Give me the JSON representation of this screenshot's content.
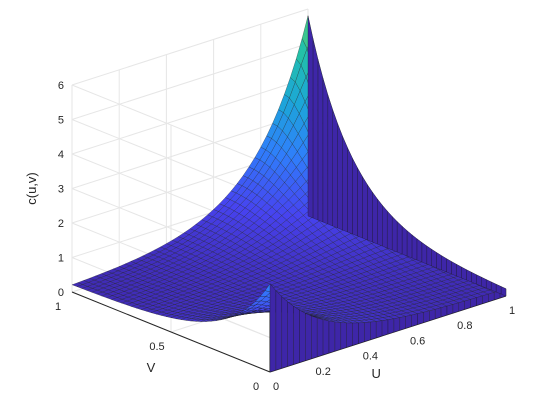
{
  "chart_data": {
    "type": "surface",
    "title": "",
    "xlabel": "U",
    "ylabel": "V",
    "zlabel": "c(u,v)",
    "xlim": [
      0,
      1
    ],
    "ylim": [
      0,
      1
    ],
    "zlim": [
      0,
      6
    ],
    "x_ticks": [
      "0",
      "0.2",
      "0.4",
      "0.6",
      "0.8",
      "1"
    ],
    "y_ticks": [
      "0",
      "0.5",
      "1"
    ],
    "z_ticks": [
      "0",
      "1",
      "2",
      "3",
      "4",
      "5",
      "6"
    ],
    "grid": true,
    "grid_points_per_axis": 41,
    "colormap": [
      "#3e26a8",
      "#4743f0",
      "#2f7ffb",
      "#1ca6d9",
      "#22c0aa",
      "#5dcc6a"
    ],
    "peak_values": {
      "c(0,0)": 2.55,
      "c(1,1)": 5.8,
      "c(0,1)": 0.12,
      "c(1,0)": 0.12,
      "c(0.5,0.5)": 0.3
    }
  }
}
